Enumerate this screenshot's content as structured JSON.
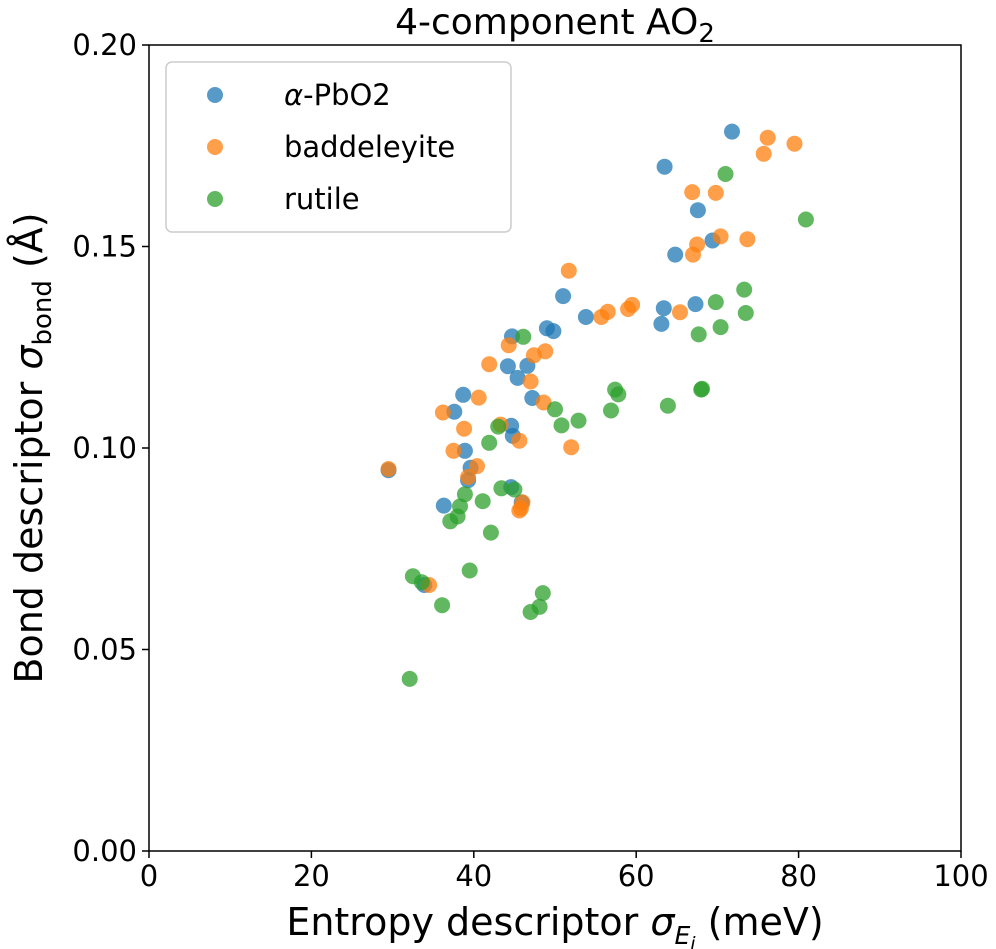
{
  "chart_data": {
    "type": "scatter",
    "title": {
      "main": "4-component AO",
      "sub": "2"
    },
    "xlabel": {
      "text": "Entropy descriptor ",
      "symbol": "σ",
      "sub": "E",
      "subsub": "i",
      "unit": " (meV)"
    },
    "ylabel": {
      "text": "Bond descriptor ",
      "symbol": "σ",
      "sub": "bond",
      "unit": " (Å)"
    },
    "xlim": [
      0,
      100
    ],
    "ylim": [
      0,
      0.2
    ],
    "xticks": [
      {
        "v": 0,
        "label": "0"
      },
      {
        "v": 20,
        "label": "20"
      },
      {
        "v": 40,
        "label": "40"
      },
      {
        "v": 60,
        "label": "60"
      },
      {
        "v": 80,
        "label": "80"
      },
      {
        "v": 100,
        "label": "100"
      }
    ],
    "yticks": [
      {
        "v": 0,
        "label": "0.00"
      },
      {
        "v": 0.05,
        "label": "0.05"
      },
      {
        "v": 0.1,
        "label": "0.10"
      },
      {
        "v": 0.15,
        "label": "0.15"
      },
      {
        "v": 0.2,
        "label": "0.20"
      }
    ],
    "grid": false,
    "legend_position": "top-left",
    "series": [
      {
        "name": "α-PbO2",
        "label_prefix": "α",
        "label_rest": "-PbO2",
        "color": "#1f77b4",
        "points": [
          [
            71.8,
            0.1785
          ],
          [
            63.5,
            0.1698
          ],
          [
            67.6,
            0.159
          ],
          [
            69.4,
            0.1515
          ],
          [
            64.8,
            0.148
          ],
          [
            51.0,
            0.1377
          ],
          [
            53.8,
            0.1325
          ],
          [
            63.4,
            0.1347
          ],
          [
            67.3,
            0.1357
          ],
          [
            63.1,
            0.1308
          ],
          [
            44.7,
            0.1277
          ],
          [
            49.0,
            0.1297
          ],
          [
            49.8,
            0.129
          ],
          [
            44.2,
            0.1203
          ],
          [
            46.6,
            0.1204
          ],
          [
            45.4,
            0.1174
          ],
          [
            47.2,
            0.1124
          ],
          [
            38.7,
            0.1132
          ],
          [
            37.6,
            0.109
          ],
          [
            44.6,
            0.1055
          ],
          [
            44.8,
            0.103
          ],
          [
            38.9,
            0.0993
          ],
          [
            39.6,
            0.0951
          ],
          [
            39.3,
            0.092
          ],
          [
            29.5,
            0.0945
          ],
          [
            36.3,
            0.0857
          ],
          [
            44.6,
            0.0903
          ],
          [
            45.9,
            0.0865
          ],
          [
            33.9,
            0.066
          ]
        ]
      },
      {
        "name": "baddeleyite",
        "color": "#ff7f0e",
        "points": [
          [
            76.2,
            0.177
          ],
          [
            79.5,
            0.1755
          ],
          [
            75.7,
            0.173
          ],
          [
            66.9,
            0.1635
          ],
          [
            69.8,
            0.1633
          ],
          [
            70.4,
            0.1525
          ],
          [
            73.7,
            0.1518
          ],
          [
            67.5,
            0.1505
          ],
          [
            67.0,
            0.148
          ],
          [
            51.7,
            0.144
          ],
          [
            59.5,
            0.1355
          ],
          [
            59.0,
            0.1345
          ],
          [
            56.5,
            0.1338
          ],
          [
            55.7,
            0.1325
          ],
          [
            65.4,
            0.1337
          ],
          [
            48.8,
            0.124
          ],
          [
            47.4,
            0.123
          ],
          [
            44.3,
            0.1255
          ],
          [
            41.9,
            0.1208
          ],
          [
            47.0,
            0.1165
          ],
          [
            40.6,
            0.1125
          ],
          [
            48.6,
            0.1113
          ],
          [
            36.2,
            0.1088
          ],
          [
            38.8,
            0.1048
          ],
          [
            43.3,
            0.1058
          ],
          [
            45.6,
            0.1018
          ],
          [
            37.5,
            0.0993
          ],
          [
            52.0,
            0.1002
          ],
          [
            40.4,
            0.0955
          ],
          [
            39.3,
            0.0928
          ],
          [
            29.5,
            0.0948
          ],
          [
            45.8,
            0.085
          ],
          [
            46.0,
            0.0865
          ],
          [
            45.6,
            0.0845
          ],
          [
            34.5,
            0.066
          ]
        ]
      },
      {
        "name": "rutile",
        "color": "#2ca02c",
        "points": [
          [
            71.0,
            0.168
          ],
          [
            80.9,
            0.1567
          ],
          [
            73.3,
            0.1393
          ],
          [
            69.8,
            0.1362
          ],
          [
            73.5,
            0.1335
          ],
          [
            70.4,
            0.13
          ],
          [
            67.7,
            0.1282
          ],
          [
            46.1,
            0.1276
          ],
          [
            57.4,
            0.1145
          ],
          [
            57.8,
            0.1133
          ],
          [
            68.1,
            0.1147
          ],
          [
            68.0,
            0.1145
          ],
          [
            63.9,
            0.1105
          ],
          [
            56.9,
            0.1093
          ],
          [
            50.0,
            0.1096
          ],
          [
            52.9,
            0.1068
          ],
          [
            50.8,
            0.1056
          ],
          [
            43.0,
            0.1053
          ],
          [
            41.9,
            0.1013
          ],
          [
            38.9,
            0.0885
          ],
          [
            43.4,
            0.09
          ],
          [
            45.0,
            0.0897
          ],
          [
            41.1,
            0.0868
          ],
          [
            38.3,
            0.0855
          ],
          [
            38.0,
            0.083
          ],
          [
            37.1,
            0.0818
          ],
          [
            42.1,
            0.079
          ],
          [
            39.5,
            0.0696
          ],
          [
            32.5,
            0.0682
          ],
          [
            33.6,
            0.0667
          ],
          [
            36.1,
            0.061
          ],
          [
            48.5,
            0.064
          ],
          [
            48.1,
            0.0606
          ],
          [
            47.0,
            0.0593
          ],
          [
            32.1,
            0.0427
          ]
        ]
      }
    ]
  }
}
